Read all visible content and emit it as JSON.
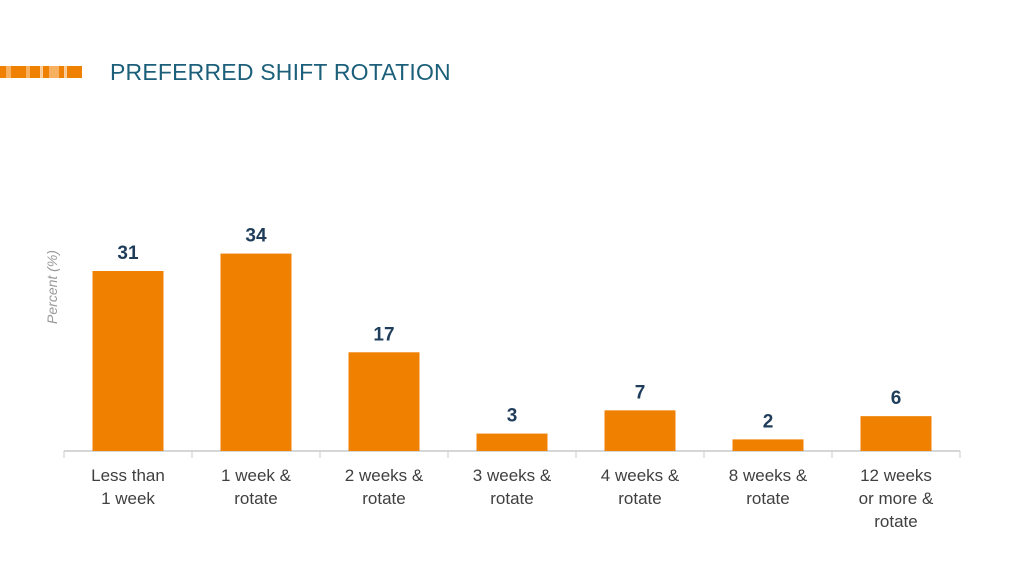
{
  "title": "PREFERRED SHIFT ROTATION",
  "colors": {
    "bar": "#f08000",
    "title": "#1b5f7a",
    "value_label": "#1f3d5a",
    "axis": "#c8c8c8"
  },
  "chart_data": {
    "type": "bar",
    "ylabel": "Percent (%)",
    "xlabel": "",
    "ylim": [
      0,
      40
    ],
    "grid": false,
    "legend": "none",
    "categories": [
      [
        "Less than",
        "1 week"
      ],
      [
        "1 week &",
        "rotate"
      ],
      [
        "2 weeks &",
        "rotate"
      ],
      [
        "3 weeks &",
        "rotate"
      ],
      [
        "4 weeks &",
        "rotate"
      ],
      [
        "8 weeks &",
        "rotate"
      ],
      [
        "12 weeks",
        "or more &",
        "rotate"
      ]
    ],
    "values": [
      31,
      34,
      17,
      3,
      7,
      2,
      6
    ]
  }
}
